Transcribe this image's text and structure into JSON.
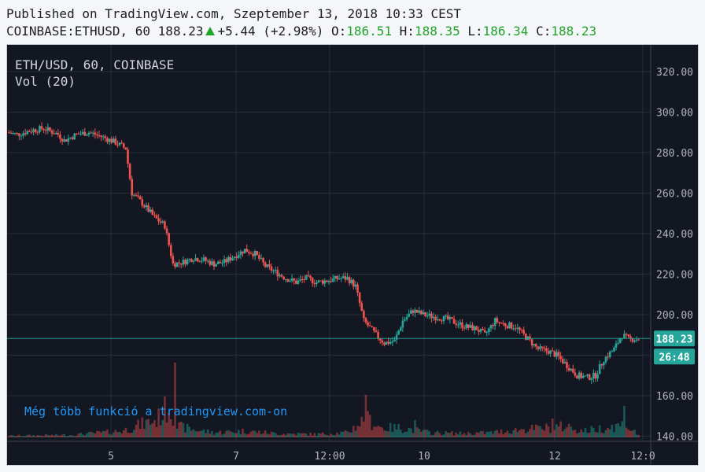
{
  "header": {
    "published": "Published on TradingView.com, Szeptember 13, 2018 10:33 CEST",
    "symbol": "COINBASE:ETHUSD, 60",
    "last": "188.23",
    "change": "+5.44 (+2.98%)",
    "o_label": "O:",
    "o_value": "186.51",
    "h_label": "H:",
    "h_value": "188.35",
    "l_label": "L:",
    "l_value": "186.34",
    "c_label": "C:",
    "c_value": "188.23"
  },
  "legend": {
    "title": "ETH/USD, 60, COINBASE",
    "volume": "Vol (20)"
  },
  "watermark": "Még több funkció a tradingview.com-on",
  "colors": {
    "background": "#131722",
    "grid": "#2a2e39",
    "up": "#26a69a",
    "down": "#ef5350",
    "axis_text": "#b2b5be",
    "price_tag": "#26a69a",
    "watermark": "#2196f3"
  },
  "chart_data": {
    "type": "candlestick",
    "price_axis": {
      "ylim": [
        135,
        330
      ],
      "ticks": [
        "320.00",
        "300.00",
        "280.00",
        "260.00",
        "240.00",
        "220.00",
        "200.00",
        "180.00",
        "160.00",
        "140.00"
      ]
    },
    "time_axis": {
      "ticks": [
        "5",
        "7",
        "12:00",
        "10",
        "12",
        "12:0"
      ]
    },
    "last_price": "188.23",
    "countdown": "26:48",
    "price_path": [
      [
        0,
        290
      ],
      [
        5,
        289
      ],
      [
        12,
        291
      ],
      [
        18,
        292
      ],
      [
        25,
        289
      ],
      [
        28,
        286
      ],
      [
        34,
        289
      ],
      [
        40,
        290
      ],
      [
        46,
        288
      ],
      [
        53,
        285
      ],
      [
        58,
        282
      ],
      [
        61,
        260
      ],
      [
        66,
        255
      ],
      [
        72,
        248
      ],
      [
        77,
        244
      ],
      [
        81,
        225
      ],
      [
        86,
        226
      ],
      [
        91,
        228
      ],
      [
        96,
        227
      ],
      [
        101,
        225
      ],
      [
        106,
        226
      ],
      [
        111,
        229
      ],
      [
        116,
        232
      ],
      [
        121,
        230
      ],
      [
        126,
        224
      ],
      [
        131,
        221
      ],
      [
        136,
        218
      ],
      [
        141,
        216
      ],
      [
        146,
        218
      ],
      [
        151,
        216
      ],
      [
        157,
        217
      ],
      [
        162,
        218
      ],
      [
        166,
        218
      ],
      [
        170,
        214
      ],
      [
        174,
        197
      ],
      [
        180,
        190
      ],
      [
        184,
        186
      ],
      [
        189,
        187
      ],
      [
        193,
        197
      ],
      [
        198,
        202
      ],
      [
        203,
        200
      ],
      [
        208,
        199
      ],
      [
        214,
        198
      ],
      [
        219,
        196
      ],
      [
        224,
        194
      ],
      [
        229,
        193
      ],
      [
        233,
        190
      ],
      [
        238,
        197
      ],
      [
        243,
        195
      ],
      [
        248,
        194
      ],
      [
        254,
        188
      ],
      [
        259,
        183
      ],
      [
        264,
        182
      ],
      [
        268,
        180
      ],
      [
        273,
        175
      ],
      [
        278,
        170
      ],
      [
        283,
        169
      ],
      [
        287,
        170
      ],
      [
        291,
        178
      ],
      [
        296,
        183
      ],
      [
        300,
        190
      ],
      [
        303,
        188
      ],
      [
        307,
        188
      ]
    ],
    "volume_profile": [
      [
        0,
        2
      ],
      [
        30,
        3
      ],
      [
        55,
        8
      ],
      [
        64,
        16
      ],
      [
        72,
        22
      ],
      [
        78,
        40
      ],
      [
        82,
        14
      ],
      [
        90,
        10
      ],
      [
        100,
        6
      ],
      [
        115,
        8
      ],
      [
        130,
        5
      ],
      [
        150,
        4
      ],
      [
        165,
        6
      ],
      [
        174,
        24
      ],
      [
        182,
        12
      ],
      [
        192,
        12
      ],
      [
        205,
        6
      ],
      [
        220,
        5
      ],
      [
        235,
        6
      ],
      [
        250,
        10
      ],
      [
        262,
        12
      ],
      [
        272,
        14
      ],
      [
        280,
        8
      ],
      [
        290,
        12
      ],
      [
        300,
        16
      ],
      [
        307,
        3
      ]
    ],
    "volume_spikes": [
      [
        81,
        95
      ],
      [
        174,
        54
      ],
      [
        198,
        22
      ],
      [
        265,
        24
      ],
      [
        300,
        40
      ]
    ]
  }
}
